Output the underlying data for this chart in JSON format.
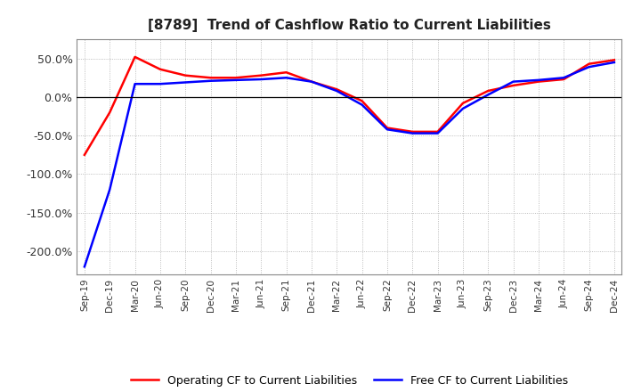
{
  "title": "[8789]  Trend of Cashflow Ratio to Current Liabilities",
  "x_labels": [
    "Sep-19",
    "Dec-19",
    "Mar-20",
    "Jun-20",
    "Sep-20",
    "Dec-20",
    "Mar-21",
    "Jun-21",
    "Sep-21",
    "Dec-21",
    "Mar-22",
    "Jun-22",
    "Sep-22",
    "Dec-22",
    "Mar-23",
    "Jun-23",
    "Sep-23",
    "Dec-23",
    "Mar-24",
    "Jun-24",
    "Sep-24",
    "Dec-24"
  ],
  "operating_cf": [
    -75,
    -20,
    52,
    36,
    28,
    25,
    25,
    28,
    32,
    20,
    10,
    -5,
    -40,
    -45,
    -45,
    -8,
    8,
    15,
    20,
    23,
    43,
    48
  ],
  "free_cf": [
    -220,
    -120,
    17,
    17,
    19,
    21,
    22,
    23,
    25,
    20,
    8,
    -10,
    -42,
    -47,
    -47,
    -15,
    3,
    20,
    22,
    25,
    39,
    45
  ],
  "operating_color": "#FF0000",
  "free_color": "#0000FF",
  "ylim": [
    -230,
    75
  ],
  "yticks": [
    50,
    0,
    -50,
    -100,
    -150,
    -200
  ],
  "ytick_labels": [
    "50.0%",
    "0.0%",
    "-50.0%",
    "-100.0%",
    "-150.0%",
    "-200.0%"
  ],
  "background_color": "#FFFFFF",
  "plot_bg_color": "#FFFFFF",
  "grid_color": "#AAAAAA",
  "title_fontsize": 11,
  "legend_operating": "Operating CF to Current Liabilities",
  "legend_free": "Free CF to Current Liabilities"
}
